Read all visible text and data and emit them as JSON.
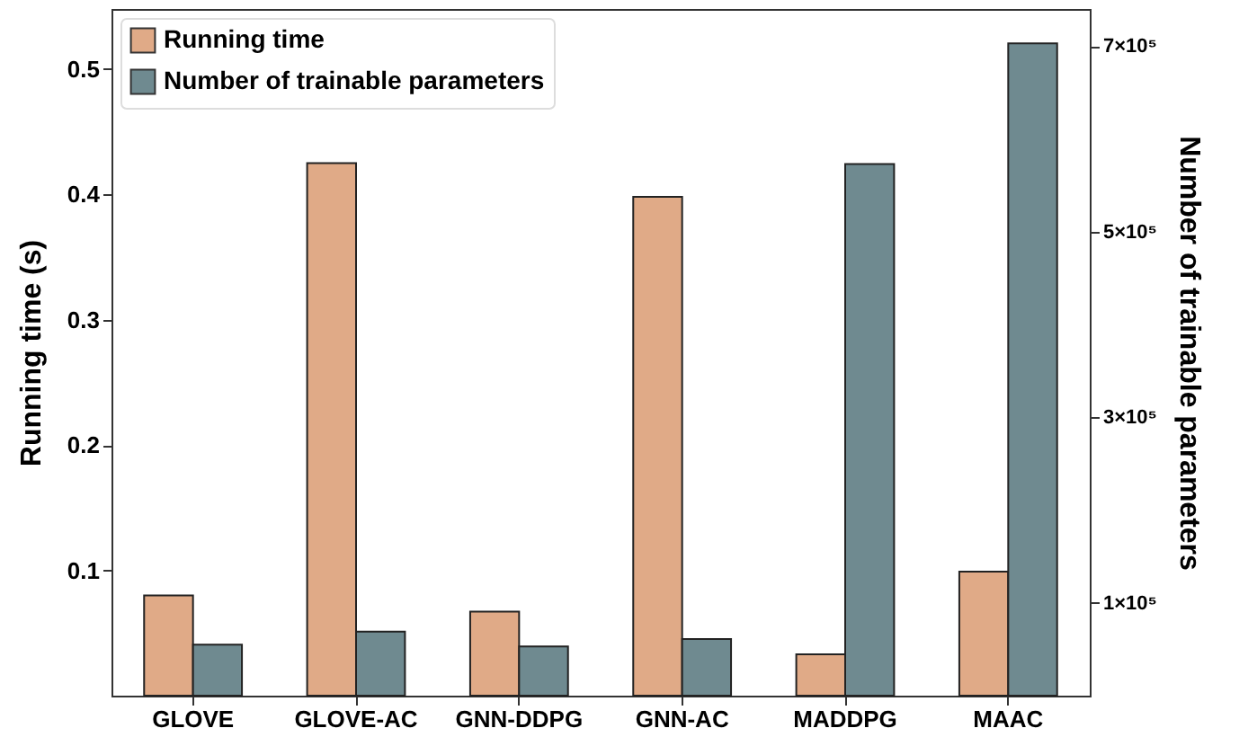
{
  "chart_data": {
    "type": "bar",
    "categories": [
      "GLOVE",
      "GLOVE-AC",
      "GNN-DDPG",
      "GNN-AC",
      "MADDPG",
      "MAAC"
    ],
    "series": [
      {
        "name": "Running time",
        "color": "#e0aa87",
        "values": [
          0.08,
          0.425,
          0.067,
          0.398,
          0.033,
          0.099
        ]
      },
      {
        "name": "Number of trainable parameters",
        "color": "#6f8a90",
        "axis": "y2",
        "values": [
          55000,
          69000,
          53000,
          61000,
          573000,
          703000
        ]
      }
    ],
    "ylabel": "Running time (s)",
    "y2label": "Number of trainable parameters",
    "ylim": [
      0,
      0.548
    ],
    "yticks": [
      0.1,
      0.2,
      0.3,
      0.4,
      0.5
    ],
    "y2lim": [
      0,
      740000
    ],
    "y2ticks": [
      {
        "value": 100000,
        "label": "1×10⁵"
      },
      {
        "value": 300000,
        "label": "3×10⁵"
      },
      {
        "value": 500000,
        "label": "5×10⁵"
      },
      {
        "value": 700000,
        "label": "7×10⁵"
      }
    ],
    "legend": "top left"
  }
}
